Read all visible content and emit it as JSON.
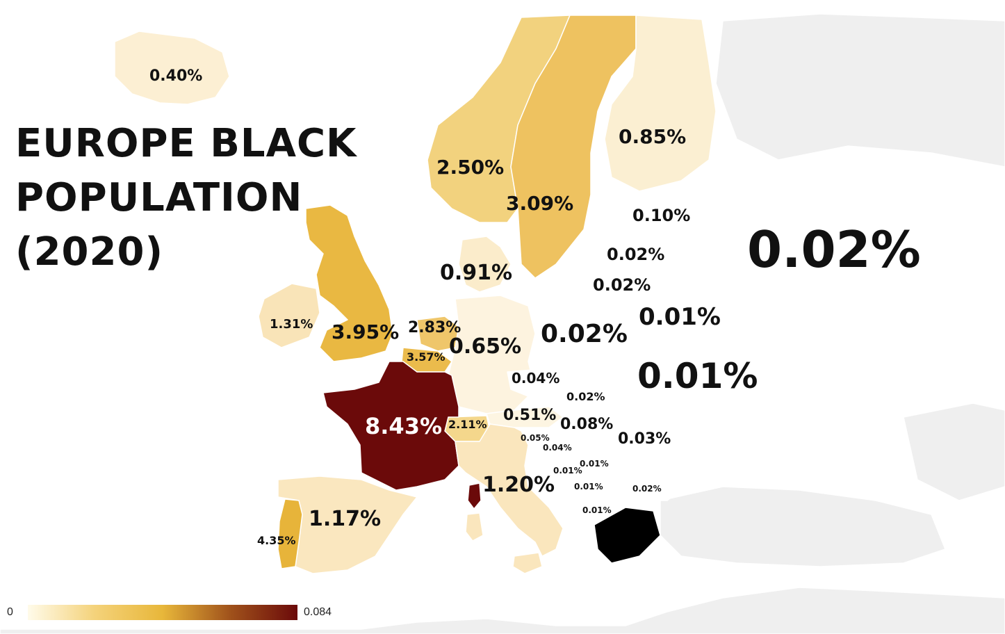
{
  "title": {
    "line1": "EUROPE BLACK",
    "line2": "POPULATION",
    "line3": "(2020)"
  },
  "legend": {
    "min_label": "0",
    "max_label": "0.084",
    "colors": [
      "#fffbea",
      "#f4d27a",
      "#e8b73a",
      "#a0521b",
      "#6b0a0a"
    ]
  },
  "colors": {
    "background": "#ffffff",
    "no_data": "#efefef",
    "border": "#ffffff"
  },
  "countries": [
    {
      "id": "iceland",
      "label": "0.40%",
      "value": 0.004,
      "color": "#fcefd3"
    },
    {
      "id": "norway",
      "label": "2.50%",
      "value": 0.025,
      "color": "#f2d27e"
    },
    {
      "id": "sweden",
      "label": "3.09%",
      "value": 0.0309,
      "color": "#eec260"
    },
    {
      "id": "finland",
      "label": "0.85%",
      "value": 0.0085,
      "color": "#fbefd2"
    },
    {
      "id": "estonia",
      "label": "0.10%",
      "value": 0.001,
      "color": "#ffffff"
    },
    {
      "id": "latvia",
      "label": "0.02%",
      "value": 0.0002,
      "color": "#ffffff"
    },
    {
      "id": "lithuania",
      "label": "0.02%",
      "value": 0.0002,
      "color": "#ffffff"
    },
    {
      "id": "russia",
      "label": "0.02%",
      "value": 0.0002,
      "color": "#ffffff"
    },
    {
      "id": "denmark",
      "label": "0.91%",
      "value": 0.0091,
      "color": "#fbeccb"
    },
    {
      "id": "ireland",
      "label": "1.31%",
      "value": 0.0131,
      "color": "#f9e4b8"
    },
    {
      "id": "united-kingdom",
      "label": "3.95%",
      "value": 0.0395,
      "color": "#e9b842"
    },
    {
      "id": "netherlands",
      "label": "2.83%",
      "value": 0.0283,
      "color": "#efc66a"
    },
    {
      "id": "belgium",
      "label": "3.57%",
      "value": 0.0357,
      "color": "#ebbb4c"
    },
    {
      "id": "germany",
      "label": "0.65%",
      "value": 0.0065,
      "color": "#fdf3df"
    },
    {
      "id": "poland",
      "label": "0.02%",
      "value": 0.0002,
      "color": "#ffffff"
    },
    {
      "id": "belarus",
      "label": "0.01%",
      "value": 0.0001,
      "color": "#ffffff"
    },
    {
      "id": "ukraine",
      "label": "0.01%",
      "value": 0.0001,
      "color": "#ffffff"
    },
    {
      "id": "czechia",
      "label": "0.04%",
      "value": 0.0004,
      "color": "#ffffff"
    },
    {
      "id": "slovakia",
      "label": "0.02%",
      "value": 0.0002,
      "color": "#ffffff"
    },
    {
      "id": "austria",
      "label": "0.51%",
      "value": 0.0051,
      "color": "#fdf5e2"
    },
    {
      "id": "hungary",
      "label": "0.08%",
      "value": 0.0008,
      "color": "#ffffff"
    },
    {
      "id": "romania",
      "label": "0.03%",
      "value": 0.0003,
      "color": "#ffffff"
    },
    {
      "id": "france",
      "label": "8.43%",
      "value": 0.0843,
      "color": "#6b0a0a"
    },
    {
      "id": "switzerland",
      "label": "2.11%",
      "value": 0.0211,
      "color": "#f4d78c"
    },
    {
      "id": "slovenia",
      "label": "0.05%",
      "value": 0.0005,
      "color": "#ffffff"
    },
    {
      "id": "croatia",
      "label": "0.04%",
      "value": 0.0004,
      "color": "#ffffff"
    },
    {
      "id": "serbia",
      "label": "0.01%",
      "value": 0.0001,
      "color": "#ffffff"
    },
    {
      "id": "bosnia",
      "label": "0.01%",
      "value": 0.0001,
      "color": "#ffffff"
    },
    {
      "id": "montenegro",
      "label": "0.01%",
      "value": 0.0001,
      "color": "#ffffff"
    },
    {
      "id": "bulgaria",
      "label": "0.02%",
      "value": 0.0002,
      "color": "#ffffff"
    },
    {
      "id": "albania",
      "label": "0.01%",
      "value": 0.0001,
      "color": "#ffffff"
    },
    {
      "id": "italy",
      "label": "1.20%",
      "value": 0.012,
      "color": "#fae6bd"
    },
    {
      "id": "spain",
      "label": "1.17%",
      "value": 0.0117,
      "color": "#fae7bf"
    },
    {
      "id": "portugal",
      "label": "4.35%",
      "value": 0.0435,
      "color": "#e7b43a"
    }
  ]
}
